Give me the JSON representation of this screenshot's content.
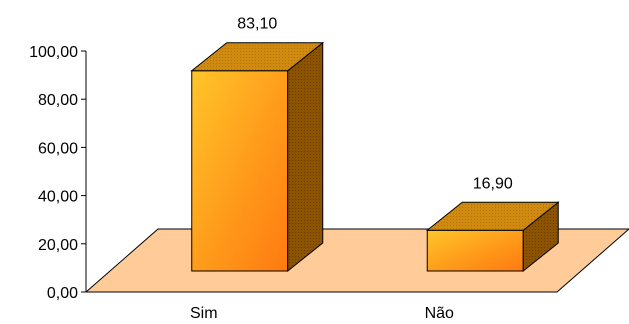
{
  "chart_data": {
    "type": "bar",
    "style": "3d-column",
    "categories": [
      "Sim",
      "Não"
    ],
    "values": [
      83.1,
      16.9
    ],
    "data_labels": [
      "83,10",
      "16,90"
    ],
    "title": "",
    "xlabel": "",
    "ylabel": "",
    "ylim": [
      0,
      100
    ],
    "yticks": [
      0,
      20,
      40,
      60,
      80,
      100
    ],
    "ytick_labels": [
      "0,00",
      "20,00",
      "40,00",
      "60,00",
      "80,00",
      "100,00"
    ],
    "grid": false,
    "legend": "none",
    "colors": {
      "bar_front_light": "#FFC52A",
      "bar_front_mid": "#FF9A1A",
      "bar_front_dark": "#FF7A10",
      "bar_top": "#D08A10",
      "bar_side": "#8C5400",
      "floor": "#FFCC99",
      "axis": "#000000"
    }
  }
}
